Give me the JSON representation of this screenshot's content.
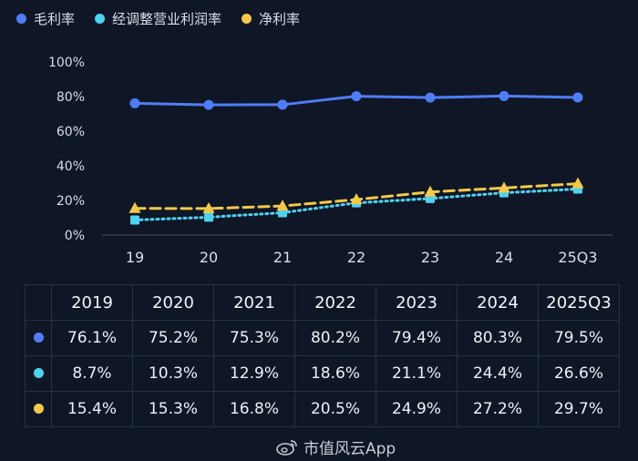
{
  "legend": [
    {
      "label": "毛利率",
      "color": "#4f7df5"
    },
    {
      "label": "经调整营业利润率",
      "color": "#4fd2f0"
    },
    {
      "label": "净利率",
      "color": "#f2c84b"
    }
  ],
  "chart_data": {
    "type": "line",
    "categories": [
      "19",
      "20",
      "21",
      "22",
      "23",
      "24",
      "25Q3"
    ],
    "ylim": [
      0,
      100
    ],
    "yticks": [
      "0%",
      "20%",
      "40%",
      "60%",
      "80%",
      "100%"
    ],
    "ytick_values": [
      0,
      20,
      40,
      60,
      80,
      100
    ],
    "series": [
      {
        "name": "毛利率",
        "color": "#4f7df5",
        "style": "solid",
        "marker": "circle",
        "values": [
          76.1,
          75.2,
          75.3,
          80.2,
          79.4,
          80.3,
          79.5
        ]
      },
      {
        "name": "经调整营业利润率",
        "color": "#4fd2f0",
        "style": "dotted",
        "marker": "square",
        "values": [
          8.7,
          10.3,
          12.9,
          18.6,
          21.1,
          24.4,
          26.6
        ]
      },
      {
        "name": "净利率",
        "color": "#f2c84b",
        "style": "dashed",
        "marker": "triangle",
        "values": [
          15.4,
          15.3,
          16.8,
          20.5,
          24.9,
          27.2,
          29.7
        ]
      }
    ]
  },
  "table": {
    "headers": [
      "2019",
      "2020",
      "2021",
      "2022",
      "2023",
      "2024",
      "2025Q3"
    ],
    "rows": [
      {
        "color": "#4f7df5",
        "cells": [
          "76.1%",
          "75.2%",
          "75.3%",
          "80.2%",
          "79.4%",
          "80.3%",
          "79.5%"
        ]
      },
      {
        "color": "#4fd2f0",
        "cells": [
          "8.7%",
          "10.3%",
          "12.9%",
          "18.6%",
          "21.1%",
          "24.4%",
          "26.6%"
        ]
      },
      {
        "color": "#f2c84b",
        "cells": [
          "15.4%",
          "15.3%",
          "16.8%",
          "20.5%",
          "24.9%",
          "27.2%",
          "29.7%"
        ]
      }
    ]
  },
  "watermark": {
    "text": "市值风云App"
  }
}
